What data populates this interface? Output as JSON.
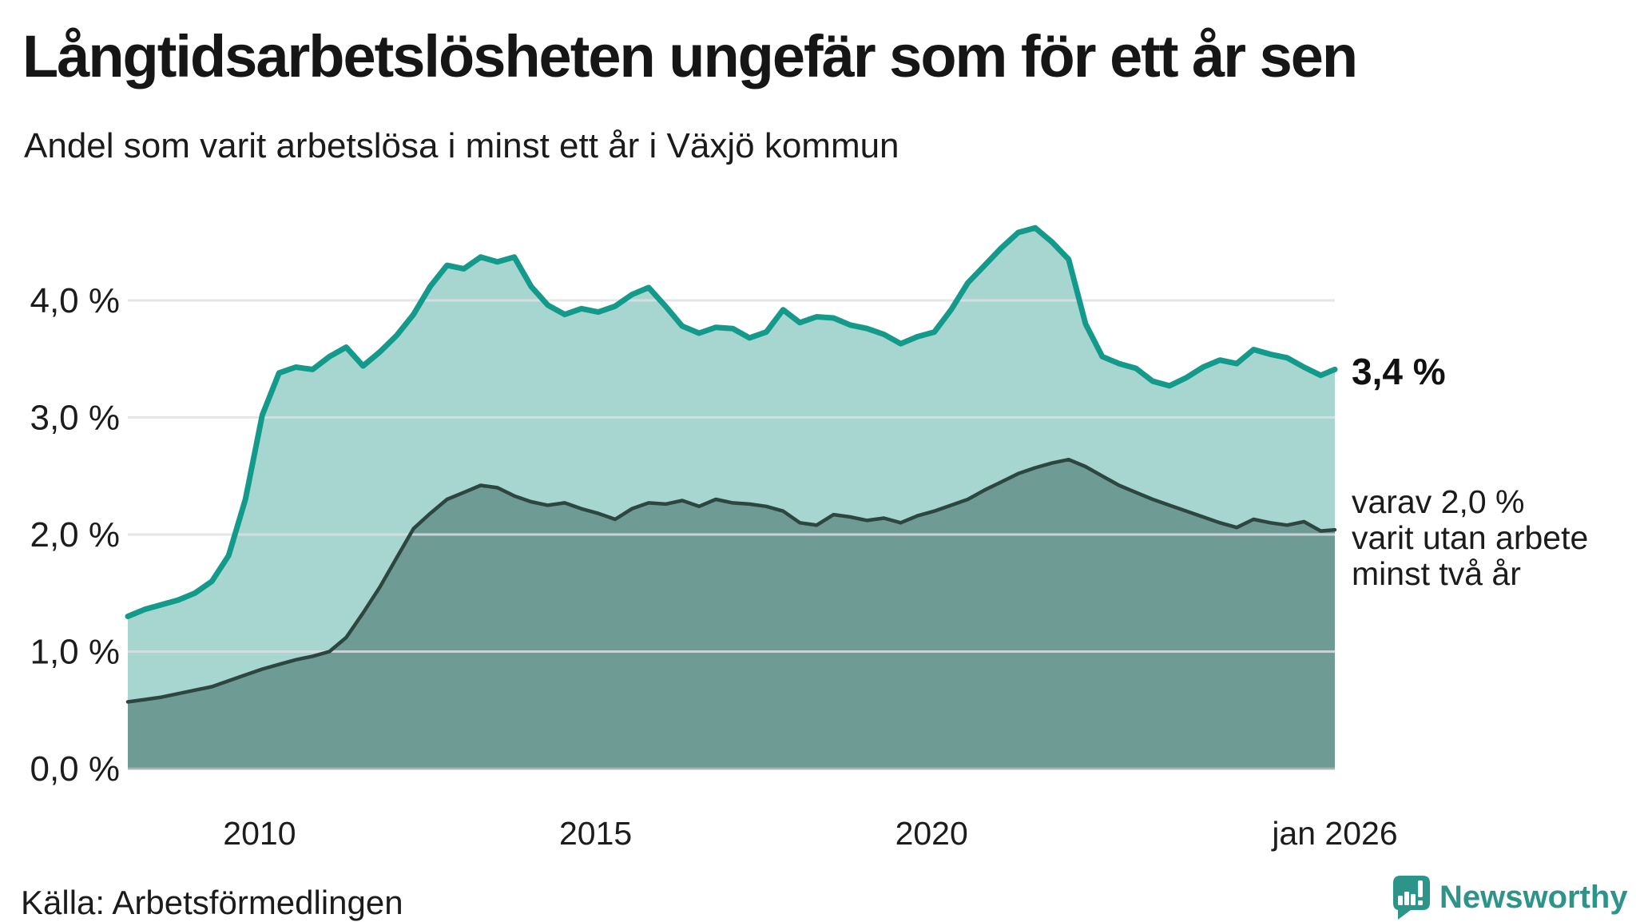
{
  "title": "Långtidsarbetslösheten ungefär som för ett år sen",
  "subtitle": "Andel som varit arbetslösa i minst ett år i Växjö kommun",
  "source": "Källa: Arbetsförmedlingen",
  "logo": {
    "icon": "newsworthy-speech-bubble-chart-icon",
    "text": "Newsworthy",
    "color": "#2d948a"
  },
  "annotations": {
    "latest_total": "3,4 %",
    "secondary_lines": [
      "varav 2,0 %",
      "varit utan arbete",
      "minst två år"
    ]
  },
  "colors": {
    "background": "#ffffff",
    "text": "#1c1c1c",
    "gridline": "#e0e0e5",
    "axis_baseline": "#a9b4b1",
    "total_line": "#149a8b",
    "total_fill": "#a6d6cf",
    "two_year_line": "#2d4640",
    "two_year_fill": "#6f9b95"
  },
  "chart_data": {
    "type": "area",
    "title": "Långtidsarbetslösheten ungefär som för ett år sen",
    "subtitle": "Andel som varit arbetslösa i minst ett år i Växjö kommun",
    "unit": "%",
    "grid": true,
    "legend_position": "right-edge-annotations",
    "xlim": [
      2008.08,
      2026.04
    ],
    "ylim": [
      0,
      5.0
    ],
    "x": [
      2008.08,
      2008.33,
      2008.58,
      2008.83,
      2009.08,
      2009.33,
      2009.58,
      2009.83,
      2010.08,
      2010.33,
      2010.58,
      2010.83,
      2011.08,
      2011.33,
      2011.58,
      2011.83,
      2012.08,
      2012.33,
      2012.58,
      2012.83,
      2013.08,
      2013.33,
      2013.58,
      2013.83,
      2014.08,
      2014.33,
      2014.58,
      2014.83,
      2015.08,
      2015.33,
      2015.58,
      2015.83,
      2016.08,
      2016.33,
      2016.58,
      2016.83,
      2017.08,
      2017.33,
      2017.58,
      2017.83,
      2018.08,
      2018.33,
      2018.58,
      2018.83,
      2019.08,
      2019.33,
      2019.58,
      2019.83,
      2020.08,
      2020.33,
      2020.58,
      2020.83,
      2021.08,
      2021.33,
      2021.58,
      2021.83,
      2022.08,
      2022.33,
      2022.58,
      2022.83,
      2023.08,
      2023.33,
      2023.58,
      2023.83,
      2024.08,
      2024.33,
      2024.58,
      2024.83,
      2025.08,
      2025.33,
      2025.58,
      2025.83,
      2026.04
    ],
    "series": [
      {
        "id": "minst-ett-ar",
        "name": "Andel arbetslösa minst ett år",
        "latest_label": "3,4 %",
        "line_color": "#149a8b",
        "fill_color": "#a6d6cf",
        "values": [
          1.3,
          1.36,
          1.4,
          1.44,
          1.5,
          1.6,
          1.82,
          2.3,
          3.02,
          3.38,
          3.43,
          3.41,
          3.52,
          3.6,
          3.44,
          3.56,
          3.7,
          3.88,
          4.12,
          4.3,
          4.27,
          4.37,
          4.33,
          4.37,
          4.12,
          3.96,
          3.88,
          3.93,
          3.9,
          3.95,
          4.05,
          4.11,
          3.95,
          3.78,
          3.72,
          3.77,
          3.76,
          3.68,
          3.73,
          3.92,
          3.81,
          3.86,
          3.85,
          3.79,
          3.76,
          3.71,
          3.63,
          3.69,
          3.73,
          3.92,
          4.15,
          4.3,
          4.45,
          4.58,
          4.62,
          4.5,
          4.35,
          3.8,
          3.52,
          3.46,
          3.42,
          3.31,
          3.27,
          3.34,
          3.43,
          3.49,
          3.46,
          3.58,
          3.54,
          3.51,
          3.43,
          3.36,
          3.41
        ]
      },
      {
        "id": "minst-tva-ar",
        "name": "varav utan arbete minst två år",
        "latest_label": "varav 2,0 % varit utan arbete minst två år",
        "line_color": "#2d4640",
        "fill_color": "#6f9b95",
        "values": [
          0.57,
          0.59,
          0.61,
          0.64,
          0.67,
          0.7,
          0.75,
          0.8,
          0.85,
          0.89,
          0.93,
          0.96,
          1.0,
          1.12,
          1.33,
          1.55,
          1.8,
          2.05,
          2.18,
          2.3,
          2.36,
          2.42,
          2.4,
          2.33,
          2.28,
          2.25,
          2.27,
          2.22,
          2.18,
          2.13,
          2.22,
          2.27,
          2.26,
          2.29,
          2.24,
          2.3,
          2.27,
          2.26,
          2.24,
          2.2,
          2.1,
          2.08,
          2.17,
          2.15,
          2.12,
          2.14,
          2.1,
          2.16,
          2.2,
          2.25,
          2.3,
          2.38,
          2.45,
          2.52,
          2.57,
          2.61,
          2.64,
          2.58,
          2.5,
          2.42,
          2.36,
          2.3,
          2.25,
          2.2,
          2.15,
          2.1,
          2.06,
          2.13,
          2.1,
          2.08,
          2.11,
          2.03,
          2.04
        ]
      }
    ],
    "yticks": [
      {
        "value": 0,
        "label": "0,0 %"
      },
      {
        "value": 1,
        "label": "1,0 %"
      },
      {
        "value": 2,
        "label": "2,0 %"
      },
      {
        "value": 3,
        "label": "3,0 %"
      },
      {
        "value": 4,
        "label": "4,0 %"
      }
    ],
    "xticks": [
      {
        "value": 2010.04,
        "label": "2010"
      },
      {
        "value": 2015.04,
        "label": "2015"
      },
      {
        "value": 2020.04,
        "label": "2020"
      },
      {
        "value": 2026.04,
        "label": "jan 2026"
      }
    ]
  }
}
